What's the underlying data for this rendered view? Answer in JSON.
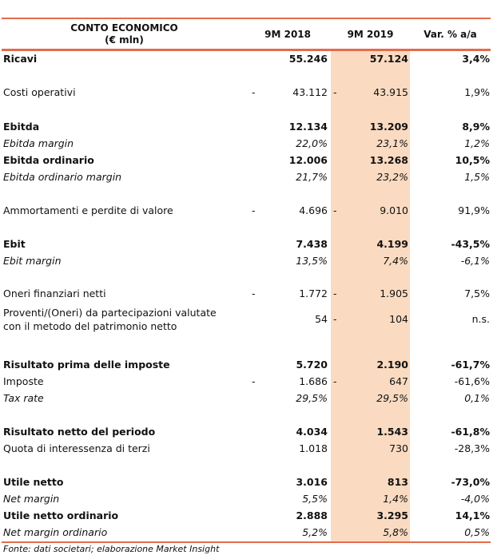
{
  "header": {
    "title_line1": "CONTO ECONOMICO",
    "title_line2": "(€ mln)",
    "col1": "9M 2018",
    "col2": "9M 2019",
    "col3": "Var. % a/a"
  },
  "rows": [
    {
      "label": "Ricavi",
      "v1": "55.246",
      "v2": "57.124",
      "v3": "3,4%",
      "d1": "",
      "d2": ""
    },
    {
      "label": "Costi operativi",
      "v1": "43.112",
      "v2": "43.915",
      "v3": "1,9%",
      "d1": "-",
      "d2": "-"
    },
    {
      "label": "Ebitda",
      "v1": "12.134",
      "v2": "13.209",
      "v3": "8,9%",
      "d1": "",
      "d2": ""
    },
    {
      "label": "Ebitda margin",
      "v1": "22,0%",
      "v2": "23,1%",
      "v3": "1,2%",
      "d1": "",
      "d2": ""
    },
    {
      "label": "Ebitda ordinario",
      "v1": "12.006",
      "v2": "13.268",
      "v3": "10,5%",
      "d1": "",
      "d2": ""
    },
    {
      "label": "Ebitda ordinario margin",
      "v1": "21,7%",
      "v2": "23,2%",
      "v3": "1,5%",
      "d1": "",
      "d2": ""
    },
    {
      "label": "Ammortamenti e perdite di valore",
      "v1": "4.696",
      "v2": "9.010",
      "v3": "91,9%",
      "d1": "-",
      "d2": "-"
    },
    {
      "label": "Ebit",
      "v1": "7.438",
      "v2": "4.199",
      "v3": "-43,5%",
      "d1": "",
      "d2": ""
    },
    {
      "label": "Ebit margin",
      "v1": "13,5%",
      "v2": "7,4%",
      "v3": "-6,1%",
      "d1": "",
      "d2": ""
    },
    {
      "label": "Oneri finanziari netti",
      "v1": "1.772",
      "v2": "1.905",
      "v3": "7,5%",
      "d1": "-",
      "d2": "-"
    },
    {
      "label_line1": "Proventi/(Oneri) da partecipazioni valutate",
      "label_line2": "con il metodo del patrimonio netto",
      "v1": "54",
      "v2": "104",
      "v3": "n.s.",
      "d1": "",
      "d2": "-"
    },
    {
      "label": "Risultato prima delle imposte",
      "v1": "5.720",
      "v2": "2.190",
      "v3": "-61,7%",
      "d1": "",
      "d2": ""
    },
    {
      "label": "Imposte",
      "v1": "1.686",
      "v2": "647",
      "v3": "-61,6%",
      "d1": "-",
      "d2": "-"
    },
    {
      "label": "Tax rate",
      "v1": "29,5%",
      "v2": "29,5%",
      "v3": "0,1%",
      "d1": "",
      "d2": ""
    },
    {
      "label": "Risultato netto del periodo",
      "v1": "4.034",
      "v2": "1.543",
      "v3": "-61,8%",
      "d1": "",
      "d2": ""
    },
    {
      "label": "Quota di interessenza di terzi",
      "v1": "1.018",
      "v2": "730",
      "v3": "-28,3%",
      "d1": "",
      "d2": ""
    },
    {
      "label": "Utile netto",
      "v1": "3.016",
      "v2": "813",
      "v3": "-73,0%",
      "d1": "",
      "d2": ""
    },
    {
      "label": "Net margin",
      "v1": "5,5%",
      "v2": "1,4%",
      "v3": "-4,0%",
      "d1": "",
      "d2": ""
    },
    {
      "label": "Utile netto ordinario",
      "v1": "2.888",
      "v2": "3.295",
      "v3": "14,1%",
      "d1": "",
      "d2": ""
    },
    {
      "label": "Net margin ordinario",
      "v1": "5,2%",
      "v2": "5,8%",
      "v3": "0,5%",
      "d1": "",
      "d2": ""
    }
  ],
  "footer": "Fonte: dati societari; elaborazione Market Insight",
  "colors": {
    "accent_line": "#e36c4c",
    "highlight_column": "#fadbc1"
  }
}
